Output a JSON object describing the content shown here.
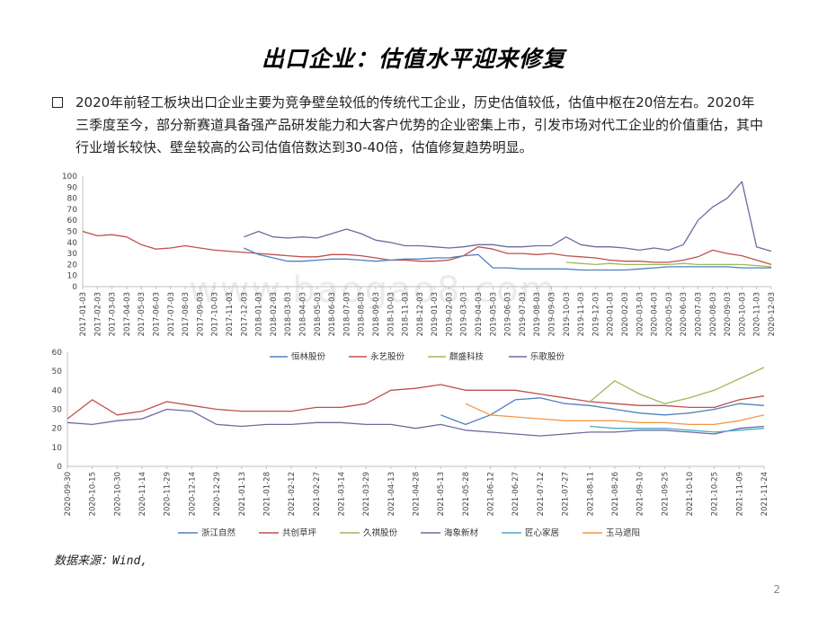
{
  "slide": {
    "title": "出口企业：估值水平迎来修复",
    "body": "2020年前轻工板块出口企业主要为竞争壁垒较低的传统代工企业，历史估值较低，估值中枢在20倍左右。2020年三季度至今，部分新赛道具备强产品研发能力和大客户优势的企业密集上市，引发市场对代工企业的价值重估，其中行业增长较快、壁垒较高的公司估值倍数达到30-40倍，估值修复趋势明显。",
    "source": "数据来源：Wind,",
    "page_number": "2",
    "watermark": "www.baogao8.com"
  },
  "chart_data": [
    {
      "type": "line",
      "ylim": [
        0,
        100
      ],
      "yticks": [
        0,
        10,
        20,
        30,
        40,
        50,
        60,
        70,
        80,
        90,
        100
      ],
      "x": [
        "2017-01-03",
        "2017-02-03",
        "2017-03-03",
        "2017-04-03",
        "2017-05-03",
        "2017-06-03",
        "2017-07-03",
        "2017-08-03",
        "2017-09-03",
        "2017-10-03",
        "2017-11-03",
        "2017-12-03",
        "2018-01-03",
        "2018-02-03",
        "2018-03-03",
        "2018-04-03",
        "2018-05-03",
        "2018-06-03",
        "2018-07-03",
        "2018-08-03",
        "2018-09-03",
        "2018-10-03",
        "2018-11-03",
        "2018-12-03",
        "2019-01-03",
        "2019-02-03",
        "2019-03-03",
        "2019-04-03",
        "2019-05-03",
        "2019-06-03",
        "2019-07-03",
        "2019-08-03",
        "2019-09-03",
        "2019-10-03",
        "2019-11-03",
        "2019-12-03",
        "2020-01-03",
        "2020-02-03",
        "2020-03-03",
        "2020-04-03",
        "2020-05-03",
        "2020-06-03",
        "2020-07-03",
        "2020-08-03",
        "2020-09-03",
        "2020-10-03",
        "2020-11-03",
        "2020-12-03"
      ],
      "series": [
        {
          "color": "#6e6aa0",
          "values": [
            null,
            null,
            null,
            null,
            null,
            null,
            null,
            null,
            null,
            null,
            null,
            45,
            50,
            45,
            44,
            45,
            44,
            48,
            52,
            48,
            42,
            40,
            37,
            37,
            36,
            35,
            36,
            38,
            38,
            36,
            36,
            37,
            37,
            45,
            38,
            36,
            36,
            35,
            33,
            35,
            33,
            38,
            60,
            72,
            80,
            95,
            36,
            32
          ]
        },
        {
          "color": "#c0504d",
          "values": [
            50,
            46,
            47,
            45,
            38,
            34,
            35,
            37,
            35,
            33,
            32,
            31,
            30,
            29,
            28,
            27,
            27,
            29,
            29,
            28,
            26,
            24,
            24,
            23,
            23,
            24,
            28,
            36,
            34,
            30,
            30,
            29,
            30,
            28,
            27,
            26,
            24,
            23,
            23,
            22,
            22,
            24,
            27,
            33,
            30,
            28,
            24,
            20
          ]
        },
        {
          "color": "#4f81bd",
          "values": [
            null,
            null,
            null,
            null,
            null,
            null,
            null,
            null,
            null,
            null,
            null,
            35,
            29,
            26,
            23,
            23,
            24,
            25,
            25,
            24,
            23,
            24,
            25,
            25,
            26,
            26,
            28,
            29,
            17,
            17,
            16,
            16,
            16,
            16,
            15,
            15,
            15,
            15,
            16,
            17,
            18,
            18,
            18,
            18,
            18,
            17,
            17,
            17
          ]
        },
        {
          "color": "#9bbb59",
          "values": [
            null,
            null,
            null,
            null,
            null,
            null,
            null,
            null,
            null,
            null,
            null,
            null,
            null,
            null,
            null,
            null,
            null,
            null,
            null,
            null,
            null,
            null,
            null,
            null,
            null,
            null,
            null,
            null,
            null,
            null,
            null,
            null,
            null,
            22,
            21,
            20,
            21,
            20,
            20,
            20,
            20,
            21,
            20,
            20,
            20,
            20,
            19,
            18
          ]
        }
      ]
    },
    {
      "type": "line",
      "ylim": [
        0,
        60
      ],
      "yticks": [
        0,
        10,
        20,
        30,
        40,
        50,
        60
      ],
      "x": [
        "2020-09-30",
        "2020-10-15",
        "2020-10-30",
        "2020-11-14",
        "2020-11-29",
        "2020-12-14",
        "2020-12-29",
        "2021-01-13",
        "2021-01-28",
        "2021-02-12",
        "2021-02-27",
        "2021-03-14",
        "2021-03-29",
        "2021-04-13",
        "2021-04-28",
        "2021-05-13",
        "2021-05-28",
        "2021-06-12",
        "2021-06-27",
        "2021-07-12",
        "2021-07-27",
        "2021-08-11",
        "2021-08-26",
        "2021-09-10",
        "2021-09-25",
        "2021-10-10",
        "2021-10-25",
        "2021-11-09",
        "2021-11-24"
      ],
      "series": [
        {
          "name": "浙江自然",
          "color": "#4f81bd",
          "values": [
            null,
            null,
            null,
            null,
            null,
            null,
            null,
            null,
            null,
            null,
            null,
            null,
            null,
            null,
            null,
            27,
            22,
            27,
            35,
            36,
            33,
            32,
            30,
            28,
            27,
            28,
            30,
            33,
            32
          ]
        },
        {
          "name": "共创草坪",
          "color": "#c0504d",
          "values": [
            25,
            35,
            27,
            29,
            34,
            32,
            30,
            29,
            29,
            29,
            31,
            31,
            33,
            40,
            41,
            43,
            40,
            40,
            40,
            38,
            36,
            34,
            33,
            32,
            32,
            31,
            31,
            35,
            37
          ]
        },
        {
          "name": "久祺股份",
          "color": "#9bbb59",
          "values": [
            null,
            null,
            null,
            null,
            null,
            null,
            null,
            null,
            null,
            null,
            null,
            null,
            null,
            null,
            null,
            null,
            null,
            null,
            null,
            null,
            null,
            34,
            45,
            38,
            33,
            36,
            40,
            46,
            52
          ]
        },
        {
          "name": "海象新材",
          "color": "#6e6aa0",
          "values": [
            23,
            22,
            24,
            25,
            30,
            29,
            22,
            21,
            22,
            22,
            23,
            23,
            22,
            22,
            20,
            22,
            19,
            18,
            17,
            16,
            17,
            18,
            18,
            19,
            19,
            18,
            17,
            20,
            21
          ]
        },
        {
          "name": "匠心家居",
          "color": "#4bacc6",
          "values": [
            null,
            null,
            null,
            null,
            null,
            null,
            null,
            null,
            null,
            null,
            null,
            null,
            null,
            null,
            null,
            null,
            null,
            null,
            null,
            null,
            null,
            21,
            20,
            20,
            20,
            19,
            18,
            19,
            20
          ]
        },
        {
          "name": "玉马遮阳",
          "color": "#f79646",
          "values": [
            null,
            null,
            null,
            null,
            null,
            null,
            null,
            null,
            null,
            null,
            null,
            null,
            null,
            null,
            null,
            null,
            33,
            27,
            26,
            25,
            24,
            24,
            24,
            23,
            23,
            22,
            22,
            24,
            27
          ]
        }
      ],
      "legend_top": [
        "恒林股份",
        "永艺股份",
        "麒盛科技",
        "乐歌股份"
      ],
      "legend_top_colors": [
        "#4f81bd",
        "#c0504d",
        "#9bbb59",
        "#6e6aa0"
      ]
    }
  ]
}
